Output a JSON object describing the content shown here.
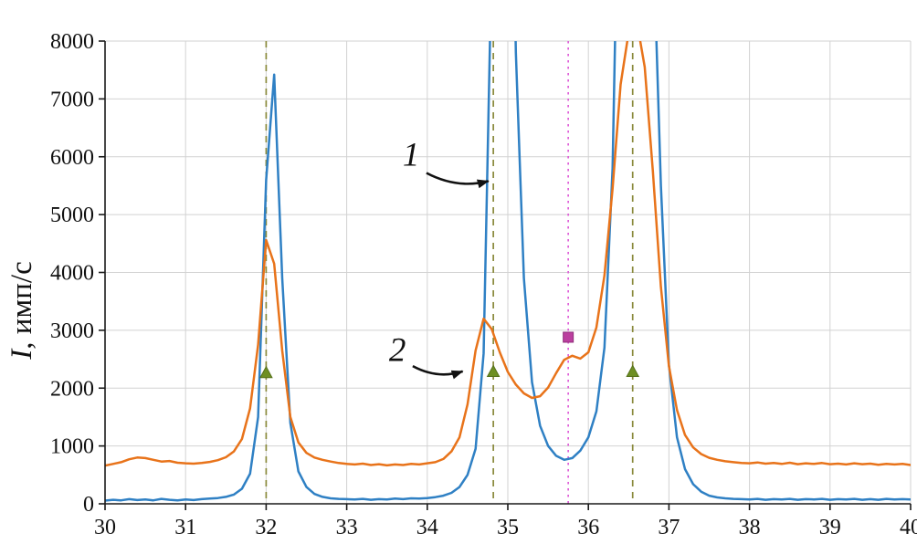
{
  "chart_data": {
    "type": "line",
    "title": "",
    "xlabel": "",
    "ylabel_italic": "I",
    "ylabel_rest": ", имп/с",
    "xlim": [
      30,
      40
    ],
    "ylim": [
      0,
      8000
    ],
    "x_ticks": [
      30,
      31,
      32,
      33,
      34,
      35,
      36,
      37,
      38,
      39,
      40
    ],
    "y_ticks": [
      0,
      1000,
      2000,
      3000,
      4000,
      5000,
      6000,
      7000,
      8000
    ],
    "grid": true,
    "legend_position": "none",
    "x_start": 30.0,
    "x_step": 0.1,
    "series": [
      {
        "name": "1",
        "color": "#2f80c4",
        "values": [
          55,
          70,
          60,
          80,
          65,
          75,
          60,
          85,
          70,
          60,
          75,
          65,
          80,
          90,
          100,
          120,
          160,
          260,
          520,
          1500,
          5600,
          7420,
          3900,
          1400,
          560,
          290,
          170,
          120,
          95,
          85,
          80,
          75,
          85,
          70,
          80,
          75,
          90,
          80,
          95,
          90,
          100,
          115,
          140,
          190,
          290,
          500,
          950,
          2600,
          9500,
          16000,
          15500,
          7800,
          3900,
          2100,
          1350,
          1000,
          830,
          760,
          790,
          920,
          1150,
          1600,
          2700,
          5800,
          13000,
          20000,
          21000,
          18000,
          10000,
          5500,
          2400,
          1150,
          600,
          340,
          210,
          140,
          110,
          95,
          85,
          80,
          75,
          85,
          70,
          80,
          75,
          85,
          70,
          80,
          75,
          85,
          70,
          80,
          75,
          85,
          70,
          80,
          70,
          85,
          75,
          80,
          75
        ]
      },
      {
        "name": "2",
        "color": "#e8731a",
        "values": [
          660,
          690,
          720,
          770,
          800,
          790,
          760,
          730,
          740,
          710,
          700,
          695,
          705,
          725,
          755,
          805,
          905,
          1120,
          1650,
          2750,
          4560,
          4150,
          2650,
          1500,
          1060,
          880,
          800,
          760,
          730,
          705,
          690,
          680,
          695,
          670,
          685,
          665,
          680,
          670,
          690,
          680,
          700,
          720,
          775,
          905,
          1150,
          1720,
          2650,
          3200,
          3020,
          2620,
          2280,
          2060,
          1910,
          1830,
          1860,
          2010,
          2260,
          2490,
          2560,
          2510,
          2620,
          3050,
          3950,
          5450,
          7250,
          8150,
          8350,
          7550,
          5750,
          3750,
          2380,
          1620,
          1190,
          975,
          860,
          795,
          760,
          735,
          720,
          705,
          700,
          715,
          695,
          705,
          690,
          710,
          685,
          700,
          690,
          705,
          685,
          695,
          680,
          700,
          685,
          695,
          675,
          690,
          680,
          690,
          670
        ]
      }
    ],
    "guide_lines": [
      {
        "name": "guide-line-32",
        "x": 32.0,
        "color": "#8a8a3c",
        "dash": "7,6"
      },
      {
        "name": "guide-line-34_8",
        "x": 34.82,
        "color": "#8a8a3c",
        "dash": "7,6"
      },
      {
        "name": "guide-line-35_75",
        "x": 35.75,
        "color": "#df5fd8",
        "dash": "2.5,4.5"
      },
      {
        "name": "guide-line-36_55",
        "x": 36.55,
        "color": "#8a8a3c",
        "dash": "7,6"
      }
    ],
    "markers": [
      {
        "type": "triangle",
        "x": 32.0,
        "y": 2260,
        "color": "#6e8f23"
      },
      {
        "type": "triangle",
        "x": 34.82,
        "y": 2280,
        "color": "#6e8f23"
      },
      {
        "type": "square",
        "x": 35.75,
        "y": 2880,
        "color": "#bb3f9f"
      },
      {
        "type": "triangle",
        "x": 36.55,
        "y": 2280,
        "color": "#6e8f23"
      }
    ],
    "annotations": [
      {
        "label": "1",
        "tx": 33.8,
        "ty": 5850,
        "sx": 33.99,
        "sy": 5720,
        "ax": 34.76,
        "ay": 5580
      },
      {
        "label": "2",
        "tx": 33.63,
        "ty": 2470,
        "sx": 33.82,
        "sy": 2380,
        "ax": 34.44,
        "ay": 2290
      }
    ]
  }
}
